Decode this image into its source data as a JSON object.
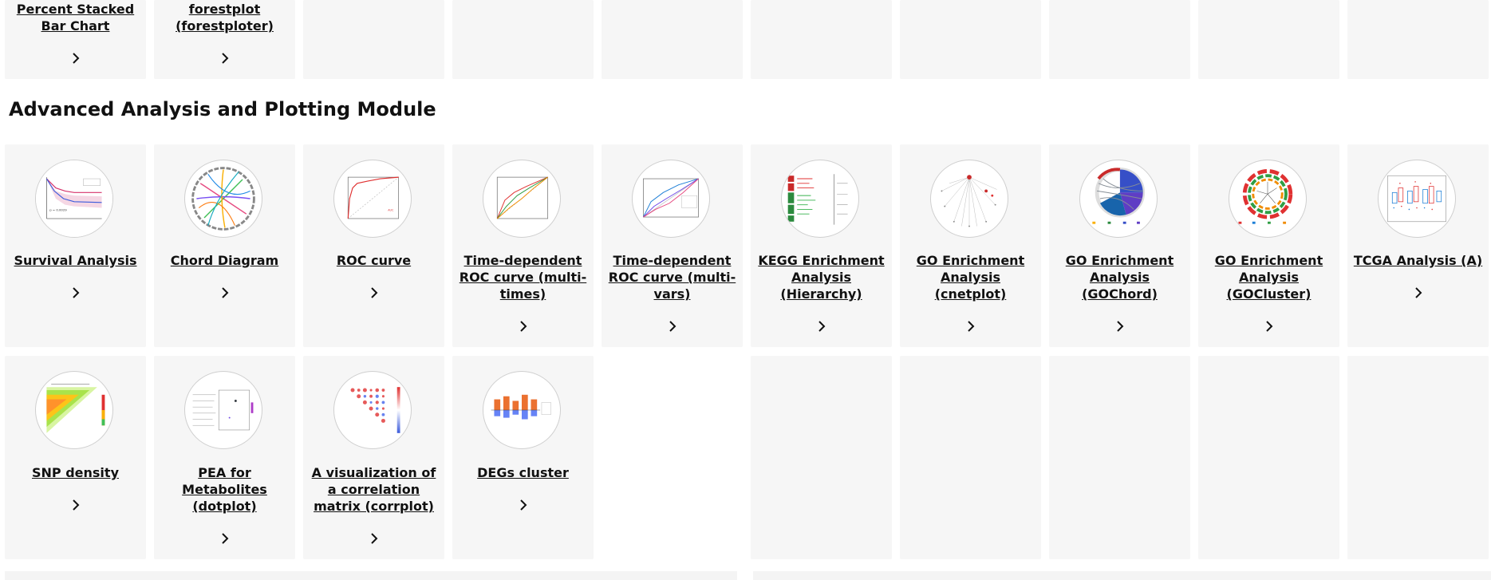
{
  "top_row": [
    {
      "label": "Percent Stacked Bar Chart"
    },
    {
      "label": "forestplot (forestploter)"
    },
    {
      "label": ""
    },
    {
      "label": ""
    },
    {
      "label": ""
    },
    {
      "label": ""
    },
    {
      "label": ""
    },
    {
      "label": ""
    },
    {
      "label": ""
    },
    {
      "label": ""
    }
  ],
  "section": {
    "title": "Advanced Analysis and Plotting Module"
  },
  "row1": [
    {
      "label": "Survival Analysis",
      "icon": "survival-curve-icon"
    },
    {
      "label": "Chord Diagram",
      "icon": "chord-diagram-icon"
    },
    {
      "label": "ROC curve",
      "icon": "roc-curve-icon"
    },
    {
      "label": "Time-dependent ROC curve (multi-times)",
      "icon": "time-roc-icon"
    },
    {
      "label": "Time-dependent ROC curve (multi-vars)",
      "icon": "survival-roc-icon"
    },
    {
      "label": "KEGG Enrichment Analysis (Hierarchy)",
      "icon": "kegg-hierarchy-icon"
    },
    {
      "label": "GO Enrichment Analysis (cnetplot)",
      "icon": "cnetplot-icon"
    },
    {
      "label": "GO Enrichment Analysis (GOChord)",
      "icon": "gochord-icon"
    },
    {
      "label": "GO Enrichment Analysis (GOCluster)",
      "icon": "gocluster-icon"
    },
    {
      "label": "TCGA Analysis (A)",
      "icon": "tcga-boxplot-icon"
    }
  ],
  "row2": [
    {
      "label": "SNP density",
      "icon": "snp-density-icon"
    },
    {
      "label": "PEA for Metabolites (dotplot)",
      "icon": "dotplot-icon"
    },
    {
      "label": "A visualization of a correlation matrix (corrplot)",
      "icon": "corrplot-icon"
    },
    {
      "label": "DEGs cluster",
      "icon": "degs-cluster-icon"
    }
  ]
}
